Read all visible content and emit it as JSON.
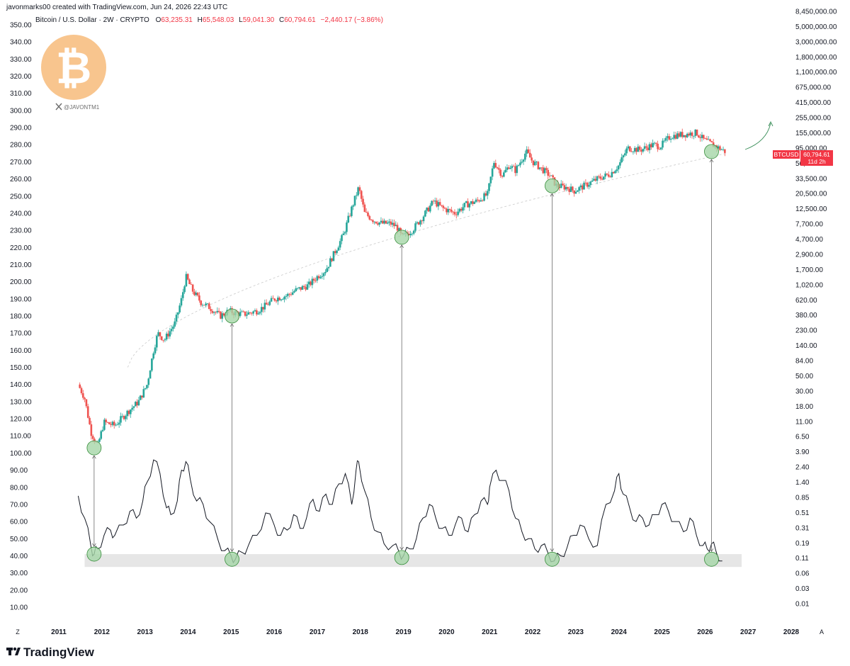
{
  "header": {
    "creator_line": "javonmarks00 created with TradingView.com, Jun 24, 2026 22:43 UTC",
    "symbol_line": "Bitcoin / U.S. Dollar · 2W · CRYPTO",
    "ohlc": [
      {
        "key": "O",
        "value": "63,235.31"
      },
      {
        "key": "H",
        "value": "65,548.03"
      },
      {
        "key": "L",
        "value": "59,041.30"
      },
      {
        "key": "C",
        "value": "60,794.61"
      }
    ],
    "change": "−2,440.17 (−3.86%)"
  },
  "watermark": {
    "handle": "@JAVONTM1"
  },
  "price_tag": {
    "symbol": "BTCUSD",
    "price": "60,794.61",
    "countdown": "11d 2h"
  },
  "corner_labels": {
    "left": "Z",
    "right": "A"
  },
  "brand": {
    "name": "TradingView"
  },
  "colors": {
    "up": "#26a69a",
    "down": "#ef5350",
    "tag": "#f23645",
    "marker_fill": "#a5d6a7",
    "marker_stroke": "#388e3c",
    "band": "#e6e6e6",
    "oscillator": "#131722",
    "bitcoin_logo": "#f8c58e"
  },
  "chart_data": {
    "type": "line",
    "title": "Bitcoin / U.S. Dollar · 2W · CRYPTO",
    "left_axis": {
      "ticks": [
        "350.00",
        "340.00",
        "330.00",
        "320.00",
        "310.00",
        "300.00",
        "290.00",
        "280.00",
        "270.00",
        "260.00",
        "250.00",
        "240.00",
        "230.00",
        "220.00",
        "210.00",
        "200.00",
        "190.00",
        "180.00",
        "170.00",
        "160.00",
        "150.00",
        "140.00",
        "130.00",
        "120.00",
        "110.00",
        "100.00",
        "90.00",
        "80.00",
        "70.00",
        "60.00",
        "50.00",
        "40.00",
        "30.00",
        "20.00",
        "10.00"
      ],
      "range": [
        10,
        350
      ]
    },
    "right_axis": {
      "scale": "log",
      "ticks": [
        "8,450,000.00",
        "5,000,000.00",
        "3,000,000.00",
        "1,800,000.00",
        "1,100,000.00",
        "675,000.00",
        "415,000.00",
        "255,000.00",
        "155,000.00",
        "95,000.00",
        "56,500.00",
        "33,500.00",
        "20,500.00",
        "12,500.00",
        "7,700.00",
        "4,700.00",
        "2,900.00",
        "1,700.00",
        "1,020.00",
        "620.00",
        "380.00",
        "230.00",
        "140.00",
        "84.00",
        "50.00",
        "30.00",
        "18.00",
        "11.00",
        "6.50",
        "3.90",
        "2.40",
        "1.40",
        "0.85",
        "0.51",
        "0.31",
        "0.19",
        "0.11",
        "0.06",
        "0.03",
        "0.01"
      ]
    },
    "x_axis": {
      "labels": [
        "2011",
        "2012",
        "2013",
        "2014",
        "2015",
        "2016",
        "2017",
        "2018",
        "2019",
        "2020",
        "2021",
        "2022",
        "2023",
        "2024",
        "2025",
        "2026",
        "2027",
        "2028"
      ],
      "range": [
        2011,
        2028
      ]
    },
    "series": [
      {
        "name": "BTCUSD",
        "style": "candles",
        "x": [
          2011.45,
          2011.6,
          2011.75,
          2011.9,
          2012.05,
          2012.3,
          2012.6,
          2012.85,
          2013.05,
          2013.2,
          2013.3,
          2013.45,
          2013.7,
          2013.85,
          2013.95,
          2014.1,
          2014.3,
          2014.5,
          2014.75,
          2014.95,
          2015.05,
          2015.3,
          2015.6,
          2015.8,
          2016.0,
          2016.3,
          2016.5,
          2016.8,
          2017.0,
          2017.2,
          2017.4,
          2017.6,
          2017.8,
          2017.96,
          2018.1,
          2018.3,
          2018.5,
          2018.7,
          2018.85,
          2018.96,
          2019.2,
          2019.45,
          2019.7,
          2019.9,
          2020.2,
          2020.45,
          2020.7,
          2020.95,
          2021.1,
          2021.3,
          2021.45,
          2021.6,
          2021.85,
          2022.0,
          2022.2,
          2022.4,
          2022.55,
          2022.8,
          2022.96,
          2023.2,
          2023.5,
          2023.8,
          2024.0,
          2024.2,
          2024.5,
          2024.8,
          2024.96,
          2025.2,
          2025.5,
          2025.8,
          2025.96,
          2026.1,
          2026.25,
          2026.4,
          2026.47
        ],
        "values": [
          140,
          132,
          112,
          104,
          118,
          116,
          124,
          130,
          140,
          160,
          170,
          166,
          176,
          190,
          203,
          195,
          188,
          185,
          180,
          183,
          182,
          181,
          183,
          186,
          190,
          192,
          195,
          198,
          203,
          207,
          217,
          227,
          243,
          255,
          240,
          236,
          234,
          234,
          232,
          226,
          230,
          238,
          247,
          243,
          240,
          245,
          247,
          251,
          270,
          262,
          268,
          265,
          276,
          270,
          266,
          262,
          256,
          255,
          253,
          256,
          260,
          263,
          268,
          278,
          277,
          280,
          279,
          285,
          286,
          287,
          283,
          281,
          279,
          277,
          276
        ]
      },
      {
        "name": "",
        "style": "line",
        "x": [
          2011.45,
          2011.6,
          2011.75,
          2011.82,
          2011.9,
          2012.05,
          2012.2,
          2012.3,
          2012.5,
          2012.65,
          2012.8,
          2012.95,
          2013.05,
          2013.2,
          2013.35,
          2013.5,
          2013.6,
          2013.75,
          2013.85,
          2013.95,
          2014.05,
          2014.2,
          2014.35,
          2014.5,
          2014.7,
          2014.85,
          2015.0,
          2015.1,
          2015.25,
          2015.4,
          2015.6,
          2015.8,
          2016.0,
          2016.15,
          2016.3,
          2016.45,
          2016.6,
          2016.75,
          2016.9,
          2017.05,
          2017.2,
          2017.35,
          2017.5,
          2017.65,
          2017.8,
          2017.9,
          2017.96,
          2018.1,
          2018.25,
          2018.4,
          2018.55,
          2018.75,
          2018.9,
          2019.0,
          2019.15,
          2019.3,
          2019.45,
          2019.6,
          2019.75,
          2019.9,
          2020.05,
          2020.2,
          2020.35,
          2020.5,
          2020.65,
          2020.8,
          2020.95,
          2021.0,
          2021.15,
          2021.3,
          2021.45,
          2021.6,
          2021.75,
          2021.9,
          2022.05,
          2022.2,
          2022.35,
          2022.5,
          2022.65,
          2022.8,
          2022.95,
          2023.1,
          2023.3,
          2023.5,
          2023.7,
          2023.9,
          2024.0,
          2024.1,
          2024.25,
          2024.4,
          2024.55,
          2024.7,
          2024.85,
          2025.0,
          2025.15,
          2025.3,
          2025.5,
          2025.65,
          2025.8,
          2025.95,
          2026.05,
          2026.15,
          2026.25,
          2026.4
        ],
        "values": [
          75,
          62,
          45,
          41,
          44,
          52,
          55,
          52,
          58,
          66,
          62,
          72,
          83,
          96,
          88,
          68,
          64,
          72,
          90,
          95,
          85,
          72,
          70,
          60,
          49,
          43,
          40,
          38,
          42,
          46,
          52,
          65,
          58,
          52,
          55,
          64,
          56,
          62,
          73,
          66,
          76,
          70,
          82,
          88,
          70,
          90,
          95,
          78,
          62,
          54,
          47,
          46,
          42,
          40,
          44,
          50,
          62,
          70,
          62,
          56,
          52,
          58,
          62,
          54,
          64,
          72,
          70,
          80,
          90,
          84,
          78,
          62,
          54,
          50,
          44,
          46,
          42,
          37,
          40,
          45,
          52,
          58,
          50,
          46,
          70,
          78,
          88,
          76,
          68,
          60,
          62,
          58,
          64,
          70,
          66,
          60,
          54,
          62,
          52,
          46,
          44,
          47,
          43,
          37
        ]
      }
    ],
    "annotations": [
      "BTCUSD",
      "60,794.61",
      "11d 2h",
      "@JAVONTM1"
    ],
    "grid": false,
    "legend": "none"
  }
}
